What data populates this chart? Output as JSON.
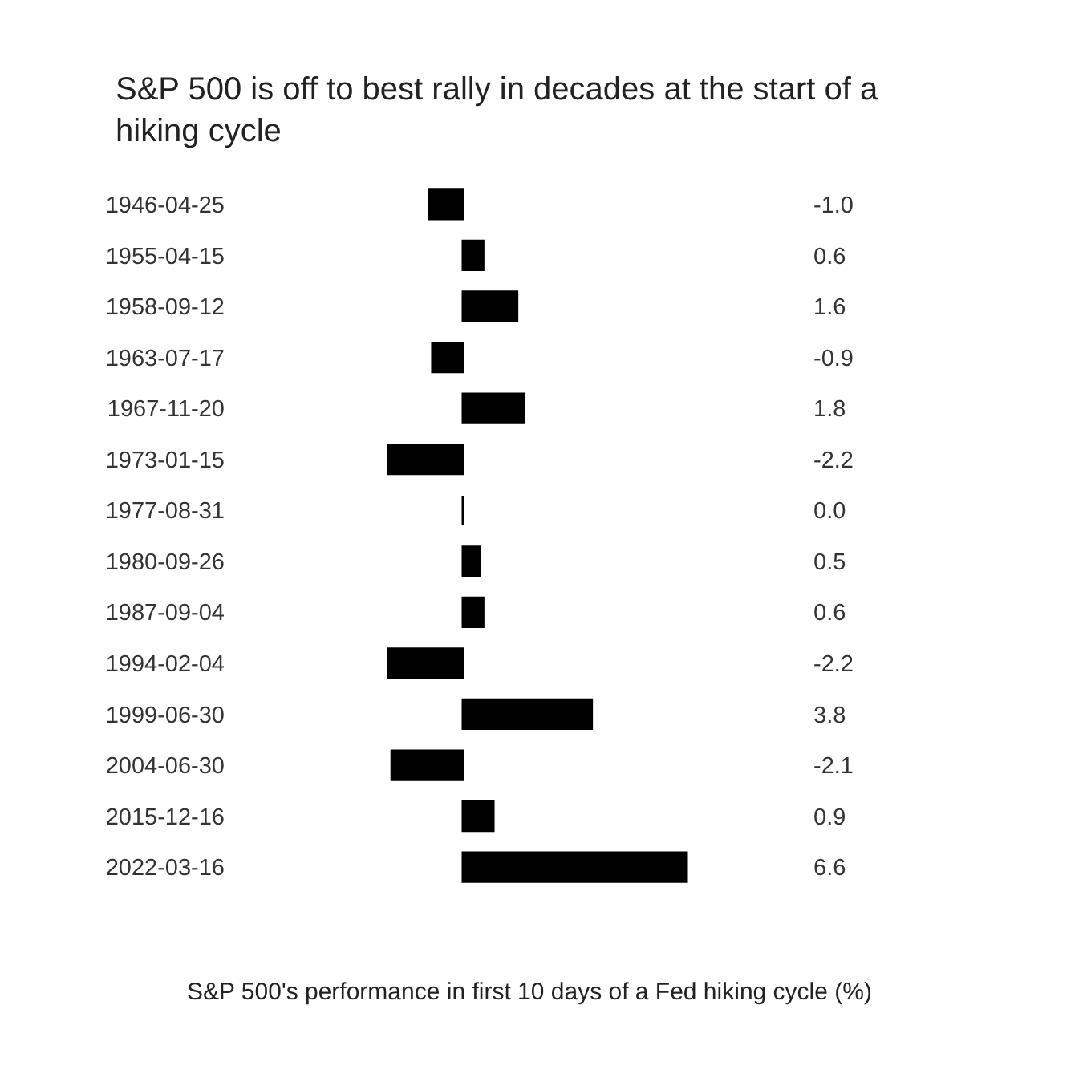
{
  "chart_data": {
    "type": "bar",
    "orientation": "horizontal",
    "title": "S&P 500 is off to best rally in decades at the start of a hiking cycle",
    "xlabel": "S&P 500's performance in first 10 days of a Fed hiking cycle (%)",
    "categories": [
      "1946-04-25",
      "1955-04-15",
      "1958-09-12",
      "1963-07-17",
      "1967-11-20",
      "1973-01-15",
      "1977-08-31",
      "1980-09-26",
      "1987-09-04",
      "1994-02-04",
      "1999-06-30",
      "2004-06-30",
      "2015-12-16",
      "2022-03-16"
    ],
    "values": [
      -1.0,
      0.6,
      1.6,
      -0.9,
      1.8,
      -2.2,
      0.0,
      0.5,
      0.6,
      -2.2,
      3.8,
      -2.1,
      0.9,
      6.6
    ],
    "value_labels": [
      "-1.0",
      "0.6",
      "1.6",
      "-0.9",
      "1.8",
      "-2.2",
      "0.0",
      "0.5",
      "0.6",
      "-2.2",
      "3.8",
      "-2.1",
      "0.9",
      "6.6"
    ],
    "color": "#000000"
  }
}
